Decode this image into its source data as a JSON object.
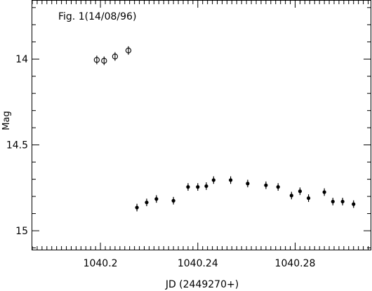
{
  "chart_data": {
    "type": "scatter",
    "title": "Fig. 1(14/08/96)",
    "xlabel": "JD (2449270+)",
    "ylabel": "Mag",
    "xlim": [
      1040.172,
      1040.311
    ],
    "ylim": [
      15.11,
      13.66
    ],
    "y_inverted": true,
    "x_major_ticks": [
      1040.2,
      1040.24,
      1040.28
    ],
    "x_tick_labels": [
      "1040.2",
      "1040.24",
      "1040.28"
    ],
    "y_major_ticks": [
      14,
      14.5,
      15
    ],
    "y_tick_labels": [
      "14",
      "14.5",
      "15"
    ],
    "grid": false,
    "legend": "none",
    "series": [
      {
        "marker": "open-circle-with-bar",
        "points": [
          {
            "x": 1040.1985,
            "y": 14.005,
            "err": 0.025
          },
          {
            "x": 1040.2015,
            "y": 14.01,
            "err": 0.025
          },
          {
            "x": 1040.206,
            "y": 13.985,
            "err": 0.025
          },
          {
            "x": 1040.2115,
            "y": 13.95,
            "err": 0.025
          }
        ]
      },
      {
        "marker": "filled-circle-with-errorbar",
        "points": [
          {
            "x": 1040.215,
            "y": 14.865,
            "err": 0.022
          },
          {
            "x": 1040.219,
            "y": 14.835,
            "err": 0.022
          },
          {
            "x": 1040.223,
            "y": 14.815,
            "err": 0.022
          },
          {
            "x": 1040.23,
            "y": 14.825,
            "err": 0.022
          },
          {
            "x": 1040.236,
            "y": 14.745,
            "err": 0.022
          },
          {
            "x": 1040.24,
            "y": 14.745,
            "err": 0.022
          },
          {
            "x": 1040.2435,
            "y": 14.74,
            "err": 0.022
          },
          {
            "x": 1040.2465,
            "y": 14.705,
            "err": 0.022
          },
          {
            "x": 1040.2535,
            "y": 14.705,
            "err": 0.022
          },
          {
            "x": 1040.2605,
            "y": 14.725,
            "err": 0.022
          },
          {
            "x": 1040.268,
            "y": 14.735,
            "err": 0.022
          },
          {
            "x": 1040.273,
            "y": 14.745,
            "err": 0.022
          },
          {
            "x": 1040.2785,
            "y": 14.795,
            "err": 0.022
          },
          {
            "x": 1040.282,
            "y": 14.77,
            "err": 0.022
          },
          {
            "x": 1040.2855,
            "y": 14.81,
            "err": 0.022
          },
          {
            "x": 1040.292,
            "y": 14.775,
            "err": 0.022
          },
          {
            "x": 1040.2955,
            "y": 14.83,
            "err": 0.022
          },
          {
            "x": 1040.2995,
            "y": 14.83,
            "err": 0.022
          },
          {
            "x": 1040.304,
            "y": 14.845,
            "err": 0.022
          }
        ]
      }
    ]
  }
}
